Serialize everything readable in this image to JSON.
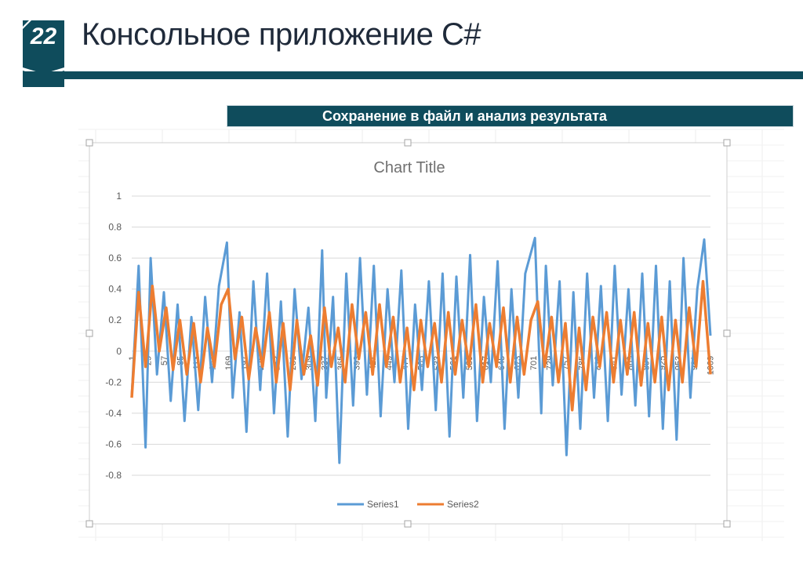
{
  "slide": {
    "number": "22",
    "title": "Консольное приложение C#",
    "caption": "Сохранение в файл и анализ результата"
  },
  "colors": {
    "brand": "#0f4c5c",
    "series1": "#5b9bd5",
    "series2": "#ed7d31",
    "gridline": "#d9d9d9"
  },
  "chart_data": {
    "type": "line",
    "title": "Chart Title",
    "xlabel": "",
    "ylabel": "",
    "ylim": [
      -0.8,
      1
    ],
    "y_ticks": [
      "1",
      "0.8",
      "0.6",
      "0.4",
      "0.2",
      "0",
      "-0.2",
      "-0.4",
      "-0.6",
      "-0.8"
    ],
    "x_range": [
      1,
      1010
    ],
    "x_tick_labels": [
      "1",
      "29",
      "57",
      "85",
      "113",
      "141",
      "169",
      "197",
      "225",
      "253",
      "281",
      "309",
      "337",
      "365",
      "393",
      "421",
      "449",
      "477",
      "505",
      "533",
      "561",
      "589",
      "617",
      "645",
      "673",
      "701",
      "729",
      "757",
      "785",
      "813",
      "841",
      "869",
      "897",
      "925",
      "953",
      "981",
      "1009"
    ],
    "grid": true,
    "legend_position": "bottom",
    "series": [
      {
        "name": "Series1",
        "x": [
          1,
          13,
          25,
          34,
          45,
          57,
          69,
          81,
          93,
          105,
          117,
          129,
          141,
          153,
          167,
          177,
          189,
          201,
          213,
          225,
          237,
          249,
          261,
          273,
          285,
          297,
          309,
          321,
          333,
          340,
          352,
          363,
          375,
          387,
          399,
          411,
          423,
          435,
          447,
          459,
          471,
          483,
          495,
          507,
          519,
          531,
          543,
          555,
          567,
          579,
          591,
          603,
          615,
          627,
          639,
          651,
          663,
          675,
          687,
          704,
          715,
          723,
          735,
          747,
          759,
          771,
          783,
          795,
          807,
          819,
          831,
          843,
          855,
          867,
          879,
          891,
          903,
          915,
          927,
          939,
          951,
          963,
          975,
          987,
          999,
          1010
        ],
        "y": [
          -0.29,
          0.55,
          -0.62,
          0.6,
          -0.15,
          0.38,
          -0.32,
          0.3,
          -0.45,
          0.22,
          -0.38,
          0.35,
          -0.2,
          0.42,
          0.7,
          -0.3,
          0.25,
          -0.52,
          0.45,
          -0.25,
          0.5,
          -0.4,
          0.32,
          -0.55,
          0.4,
          -0.18,
          0.28,
          -0.45,
          0.65,
          -0.3,
          0.35,
          -0.72,
          0.5,
          -0.35,
          0.6,
          -0.28,
          0.55,
          -0.42,
          0.4,
          -0.2,
          0.52,
          -0.5,
          0.3,
          -0.25,
          0.45,
          -0.38,
          0.5,
          -0.55,
          0.48,
          -0.3,
          0.62,
          -0.45,
          0.35,
          -0.2,
          0.58,
          -0.5,
          0.4,
          -0.3,
          0.5,
          0.73,
          -0.4,
          0.55,
          -0.22,
          0.45,
          -0.67,
          0.38,
          -0.5,
          0.5,
          -0.3,
          0.42,
          -0.45,
          0.55,
          -0.28,
          0.4,
          -0.35,
          0.5,
          -0.42,
          0.55,
          -0.5,
          0.45,
          -0.57,
          0.6,
          -0.3,
          0.4,
          0.72,
          0.1
        ]
      },
      {
        "name": "Series2",
        "x": [
          1,
          13,
          25,
          37,
          49,
          61,
          73,
          85,
          97,
          109,
          121,
          133,
          145,
          157,
          169,
          181,
          193,
          205,
          217,
          229,
          241,
          253,
          265,
          277,
          289,
          301,
          313,
          325,
          337,
          349,
          361,
          373,
          385,
          397,
          409,
          421,
          433,
          445,
          457,
          469,
          481,
          493,
          505,
          517,
          529,
          541,
          553,
          565,
          577,
          589,
          601,
          613,
          625,
          637,
          649,
          661,
          673,
          685,
          697,
          709,
          721,
          733,
          745,
          757,
          769,
          781,
          793,
          805,
          817,
          829,
          841,
          853,
          865,
          877,
          889,
          901,
          913,
          925,
          937,
          949,
          961,
          973,
          985,
          997,
          1010
        ],
        "y": [
          -0.3,
          0.38,
          -0.1,
          0.42,
          0.0,
          0.28,
          -0.12,
          0.2,
          -0.15,
          0.18,
          -0.2,
          0.15,
          -0.1,
          0.3,
          0.4,
          -0.05,
          0.22,
          -0.18,
          0.15,
          -0.1,
          0.25,
          -0.2,
          0.18,
          -0.25,
          0.2,
          -0.15,
          0.1,
          -0.22,
          0.28,
          -0.1,
          0.15,
          -0.2,
          0.3,
          -0.05,
          0.25,
          -0.15,
          0.3,
          -0.1,
          0.22,
          -0.2,
          0.15,
          -0.25,
          0.2,
          -0.1,
          0.18,
          -0.2,
          0.25,
          -0.15,
          0.2,
          -0.1,
          0.3,
          -0.2,
          0.18,
          -0.1,
          0.28,
          -0.2,
          0.22,
          -0.15,
          0.2,
          0.32,
          -0.1,
          0.22,
          -0.2,
          0.18,
          -0.38,
          0.15,
          -0.25,
          0.22,
          -0.1,
          0.25,
          -0.2,
          0.2,
          -0.15,
          0.25,
          -0.22,
          0.18,
          -0.2,
          0.22,
          -0.25,
          0.2,
          -0.2,
          0.28,
          -0.1,
          0.45,
          -0.15
        ]
      }
    ]
  }
}
